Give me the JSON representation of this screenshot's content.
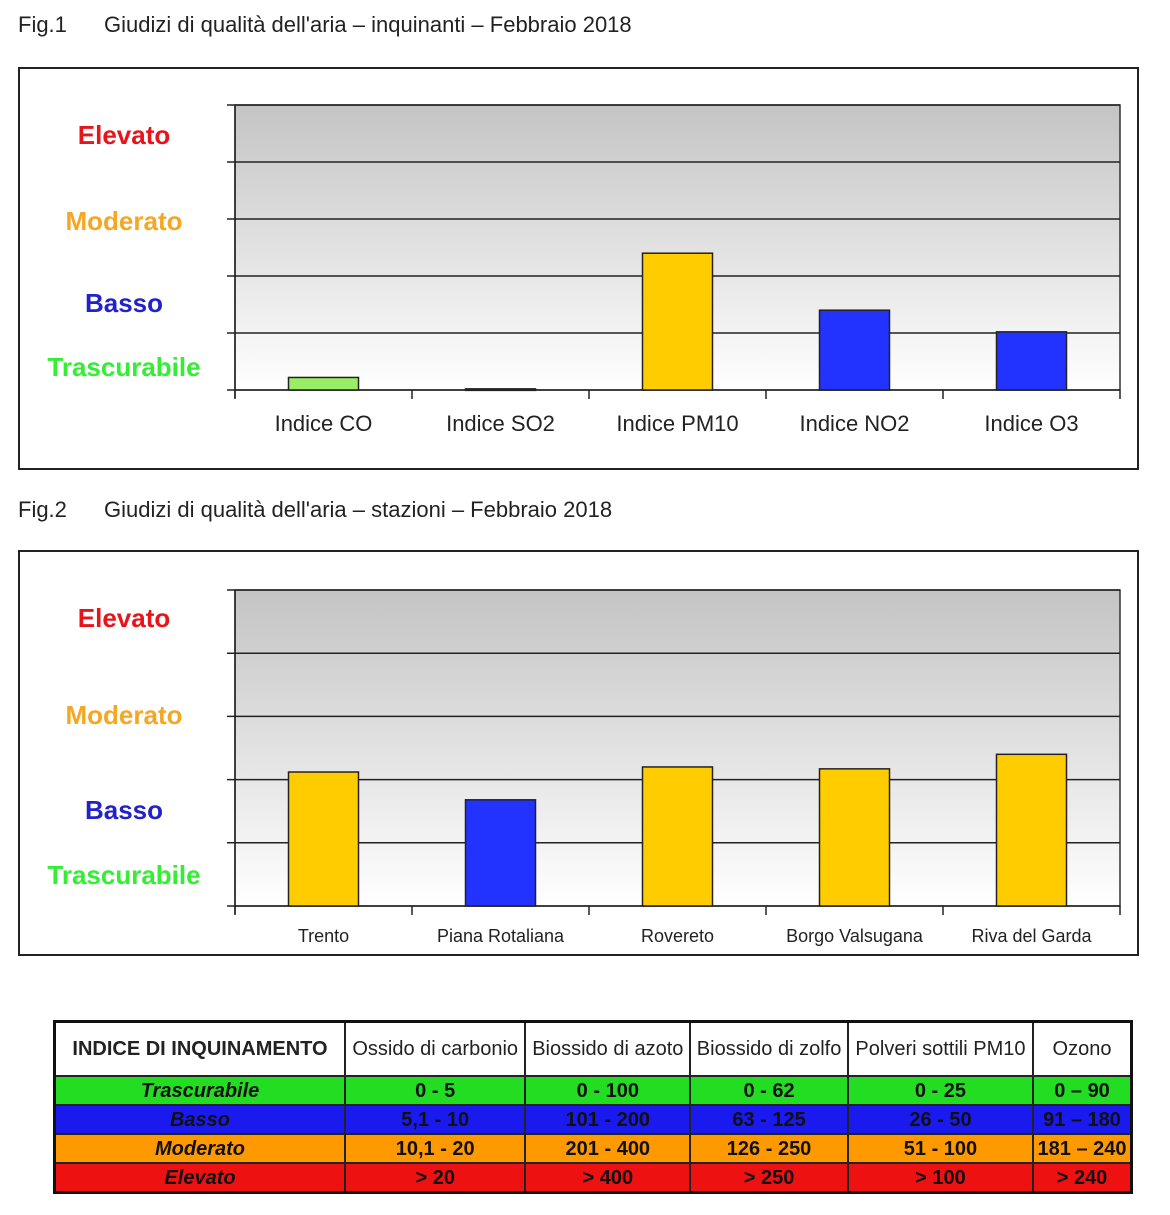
{
  "figures": [
    {
      "caption_num": "Fig.1",
      "caption_text": "Giudizi di qualità dell'aria – inquinanti – Febbraio 2018"
    },
    {
      "caption_num": "Fig.2",
      "caption_text": "Giudizi di qualità dell'aria – stazioni – Febbraio 2018"
    }
  ],
  "chart_data": [
    {
      "type": "bar",
      "title": "Giudizi di qualità dell'aria – inquinanti – Febbraio 2018",
      "y_levels": [
        {
          "label": "Trascurabile",
          "color": "#33ee33"
        },
        {
          "label": "Basso",
          "color": "#2222cc"
        },
        {
          "label": "Moderato",
          "color": "#f5a623"
        },
        {
          "label": "Elevato",
          "color": "#e8141b"
        }
      ],
      "ylim": [
        0,
        5
      ],
      "categories": [
        "Indice CO",
        "Indice SO2",
        "Indice PM10",
        "Indice NO2",
        "Indice O3"
      ],
      "values": [
        0.22,
        0.02,
        2.4,
        1.4,
        1.02
      ],
      "bar_colors": [
        "#99ee66",
        "#2233ff",
        "#ffcc00",
        "#2233ff",
        "#2233ff"
      ],
      "grid": true
    },
    {
      "type": "bar",
      "title": "Giudizi di qualità dell'aria – stazioni – Febbraio 2018",
      "y_levels": [
        {
          "label": "Trascurabile",
          "color": "#33ee33"
        },
        {
          "label": "Basso",
          "color": "#2222cc"
        },
        {
          "label": "Moderato",
          "color": "#f5a623"
        },
        {
          "label": "Elevato",
          "color": "#e8141b"
        }
      ],
      "ylim": [
        0,
        5
      ],
      "categories": [
        "Trento",
        "Piana Rotaliana",
        "Rovereto",
        "Borgo Valsugana",
        "Riva del Garda"
      ],
      "values": [
        2.12,
        1.68,
        2.2,
        2.17,
        2.4
      ],
      "bar_colors": [
        "#ffcc00",
        "#2233ff",
        "#ffcc00",
        "#ffcc00",
        "#ffcc00"
      ],
      "grid": true
    }
  ],
  "legend_table": {
    "headers": [
      "INDICE DI INQUINAMENTO",
      "Ossido di carbonio",
      "Biossido di azoto",
      "Biossido di zolfo",
      "Polveri sottili PM10",
      "Ozono"
    ],
    "rows": [
      {
        "level": "Trascurabile",
        "color": "#22dd22",
        "values": [
          "0 - 5",
          "0 - 100",
          "0 - 62",
          "0 - 25",
          "0 – 90"
        ]
      },
      {
        "level": "Basso",
        "color": "#1a1aee",
        "values": [
          "5,1 - 10",
          "101 - 200",
          "63 - 125",
          "26 - 50",
          "91 – 180"
        ]
      },
      {
        "level": "Moderato",
        "color": "#ff9900",
        "values": [
          "10,1 - 20",
          "201 - 400",
          "126 - 250",
          "51 - 100",
          "181 – 240"
        ]
      },
      {
        "level": "Elevato",
        "color": "#ee1111",
        "values": [
          "> 20",
          "> 400",
          "> 250",
          "> 100",
          "> 240"
        ]
      }
    ]
  }
}
